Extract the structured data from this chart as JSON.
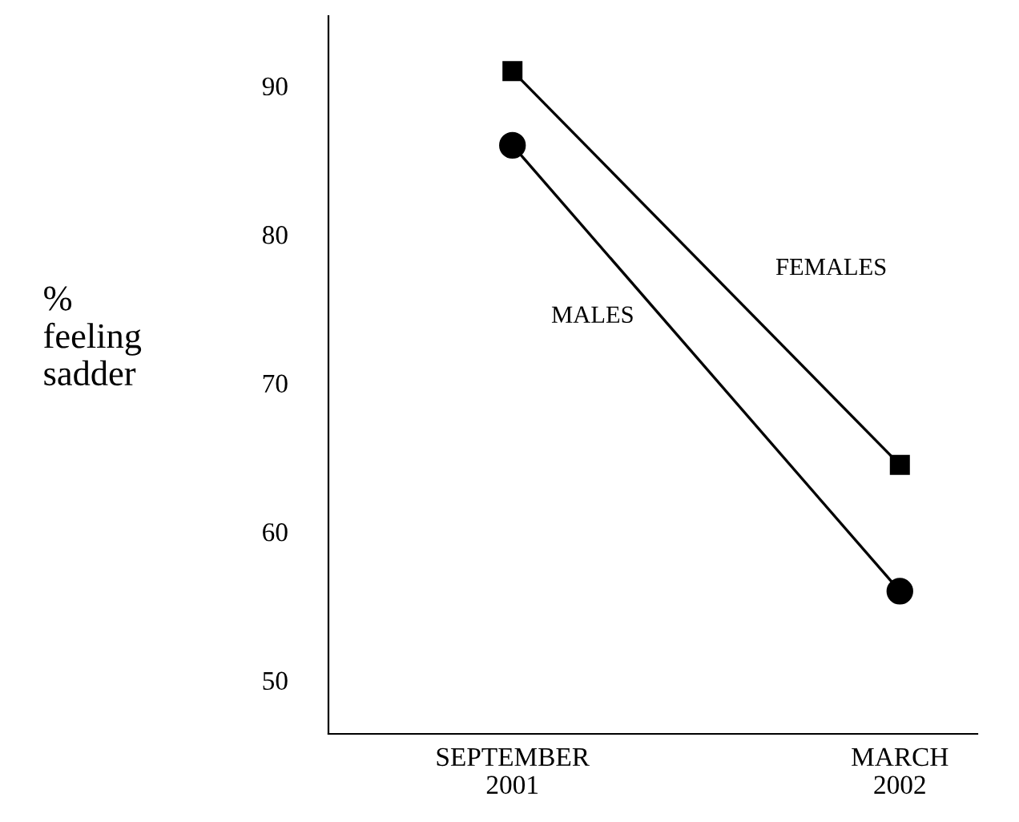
{
  "chart_data": {
    "type": "line",
    "ylabel": "%\nfeeling\nsadder",
    "categories": [
      "SEPTEMBER\n2001",
      "MARCH\n2002"
    ],
    "series": [
      {
        "name": "FEMALES",
        "color": "#000000",
        "marker": "square",
        "values": [
          91,
          64.5
        ]
      },
      {
        "name": "MALES",
        "color": "#000000",
        "marker": "circle",
        "values": [
          86,
          56
        ]
      }
    ],
    "ylim": [
      46.4,
      94.7
    ],
    "yticks": [
      50,
      60,
      70,
      80,
      90
    ],
    "grid": false,
    "legend": false,
    "line_style": "solid"
  }
}
